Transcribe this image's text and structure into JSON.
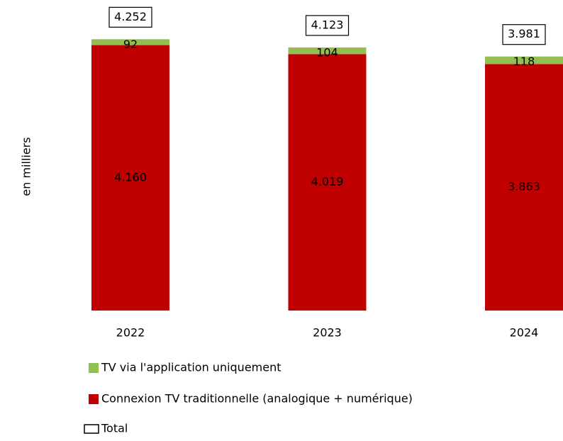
{
  "chart_data": {
    "type": "stacked_bar",
    "y_label": "en milliers",
    "categories": [
      "2022",
      "2023",
      "2024"
    ],
    "series": [
      {
        "name": "Connexion TV traditionnelle (analogique + numérique)",
        "color": "#c00000",
        "values": [
          4160,
          4019,
          3863
        ],
        "value_labels": [
          "4.160",
          "4.019",
          "3.863"
        ]
      },
      {
        "name": "TV via l'application uniquement",
        "color": "#92c050",
        "values": [
          92,
          104,
          118
        ]
      }
    ],
    "total": {
      "name": "Total",
      "values": [
        4252,
        4123,
        3981
      ],
      "value_labels": [
        "4.252",
        "4.123",
        "3.981"
      ]
    },
    "legend_order": [
      1,
      0
    ]
  }
}
